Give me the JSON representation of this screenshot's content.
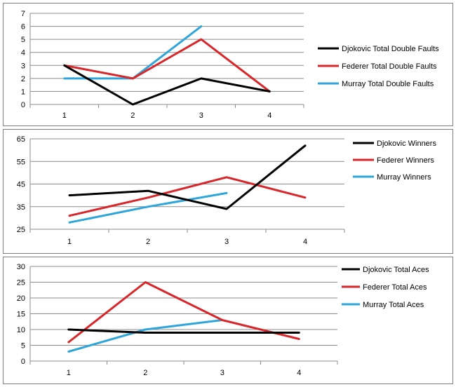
{
  "colors": {
    "djokovic": "#000000",
    "federer": "#d9262a",
    "murray": "#2fa6d9",
    "grid": "#8c8c8c"
  },
  "chart_data": [
    {
      "type": "line",
      "categories": [
        "1",
        "2",
        "3",
        "4"
      ],
      "ylim": [
        0,
        7
      ],
      "yticks": [
        0,
        1,
        2,
        3,
        4,
        5,
        6,
        7
      ],
      "grid": true,
      "legend": "right",
      "series": [
        {
          "name": "Djokovic Total Double Faults",
          "color": "#000000",
          "values": [
            3,
            0,
            2,
            1
          ]
        },
        {
          "name": "Federer Total Double Faults",
          "color": "#d9262a",
          "values": [
            3,
            2,
            5,
            1
          ]
        },
        {
          "name": "Murray Total Double Faults",
          "color": "#2fa6d9",
          "values": [
            2,
            2,
            6,
            null
          ]
        }
      ]
    },
    {
      "type": "line",
      "categories": [
        "1",
        "2",
        "3",
        "4"
      ],
      "ylim": [
        25,
        65
      ],
      "yticks": [
        25,
        35,
        45,
        55,
        65
      ],
      "grid": true,
      "legend": "right",
      "series": [
        {
          "name": "Djokovic Winners",
          "color": "#000000",
          "values": [
            40,
            42,
            34,
            62
          ]
        },
        {
          "name": "Federer Winners",
          "color": "#d9262a",
          "values": [
            31,
            39,
            48,
            39
          ]
        },
        {
          "name": "Murray Winners",
          "color": "#2fa6d9",
          "values": [
            28,
            35,
            41,
            null
          ]
        }
      ]
    },
    {
      "type": "line",
      "categories": [
        "1",
        "2",
        "3",
        "4"
      ],
      "ylim": [
        0,
        30
      ],
      "yticks": [
        0,
        5,
        10,
        15,
        20,
        25,
        30
      ],
      "grid": true,
      "legend": "right",
      "series": [
        {
          "name": "Djokovic Total Aces",
          "color": "#000000",
          "values": [
            10,
            9,
            9,
            9
          ]
        },
        {
          "name": "Federer Total Aces",
          "color": "#d9262a",
          "values": [
            6,
            25,
            13,
            7
          ]
        },
        {
          "name": "Murray Total Aces",
          "color": "#2fa6d9",
          "values": [
            3,
            10,
            13,
            null
          ]
        }
      ]
    }
  ]
}
